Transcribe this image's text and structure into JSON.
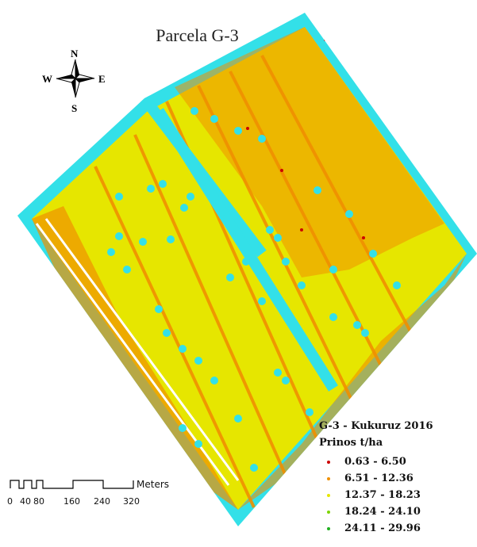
{
  "map": {
    "title": "Parcela G-3",
    "background": "#ffffff",
    "field_color": "#e6e600",
    "border_color": "#33e0e8",
    "orange_color": "#f09000",
    "red_color": "#cc0000"
  },
  "compass": {
    "north": "N",
    "south": "S",
    "east": "E",
    "west": "W"
  },
  "legend": {
    "title": "G-3 - Kukuruz 2016",
    "subtitle": "Prinos t/ha",
    "classes": [
      {
        "label": "0.63 - 6.50",
        "color": "#cc0000"
      },
      {
        "label": "6.51 - 12.36",
        "color": "#f09000"
      },
      {
        "label": "12.37 - 18.23",
        "color": "#e6e600"
      },
      {
        "label": "18.24 - 24.10",
        "color": "#7dd400"
      },
      {
        "label": "24.11 - 29.96",
        "color": "#20b020"
      }
    ]
  },
  "scalebar": {
    "unit": "Meters",
    "ticks": [
      "0",
      "40",
      "80",
      "160",
      "240",
      "320"
    ]
  }
}
